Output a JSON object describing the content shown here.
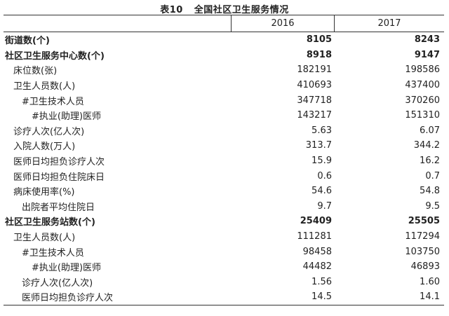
{
  "table": {
    "title_num": "表10",
    "title": "全国社区卫生服务情况",
    "columns": [
      "",
      "2016",
      "2017"
    ],
    "rows": [
      {
        "label": "街道数(个)",
        "v2016": "8105",
        "v2017": "8243",
        "bold": true,
        "indent": 0
      },
      {
        "label": "社区卫生服务中心数(个)",
        "v2016": "8918",
        "v2017": "9147",
        "bold": true,
        "indent": 0
      },
      {
        "label": "床位数(张)",
        "v2016": "182191",
        "v2017": "198586",
        "bold": false,
        "indent": 1
      },
      {
        "label": "卫生人员数(人)",
        "v2016": "410693",
        "v2017": "437400",
        "bold": false,
        "indent": 1
      },
      {
        "label": "#卫生技术人员",
        "v2016": "347718",
        "v2017": "370260",
        "bold": false,
        "indent": 2
      },
      {
        "label": "#执业(助理)医师",
        "v2016": "143217",
        "v2017": "151310",
        "bold": false,
        "indent": 3
      },
      {
        "label": "诊疗人次(亿人次)",
        "v2016": "5.63",
        "v2017": "6.07",
        "bold": false,
        "indent": 1
      },
      {
        "label": "入院人数(万人)",
        "v2016": "313.7",
        "v2017": "344.2",
        "bold": false,
        "indent": 1
      },
      {
        "label": "医师日均担负诊疗人次",
        "v2016": "15.9",
        "v2017": "16.2",
        "bold": false,
        "indent": 1
      },
      {
        "label": "医师日均担负住院床日",
        "v2016": "0.6",
        "v2017": "0.7",
        "bold": false,
        "indent": 1
      },
      {
        "label": "病床使用率(%)",
        "v2016": "54.6",
        "v2017": "54.8",
        "bold": false,
        "indent": 1
      },
      {
        "label": "出院者平均住院日",
        "v2016": "9.7",
        "v2017": "9.5",
        "bold": false,
        "indent": 2
      },
      {
        "label": "社区卫生服务站数(个)",
        "v2016": "25409",
        "v2017": "25505",
        "bold": true,
        "indent": 0
      },
      {
        "label": "卫生人员数(人)",
        "v2016": "111281",
        "v2017": "117294",
        "bold": false,
        "indent": 1
      },
      {
        "label": "#卫生技术人员",
        "v2016": "98458",
        "v2017": "103750",
        "bold": false,
        "indent": 2
      },
      {
        "label": "#执业(助理)医师",
        "v2016": "44482",
        "v2017": "46893",
        "bold": false,
        "indent": 3
      },
      {
        "label": "诊疗人次(亿人次)",
        "v2016": "1.56",
        "v2017": "1.60",
        "bold": false,
        "indent": 2
      },
      {
        "label": "医师日均担负诊疗人次",
        "v2016": "14.5",
        "v2017": "14.1",
        "bold": false,
        "indent": 2
      }
    ]
  }
}
